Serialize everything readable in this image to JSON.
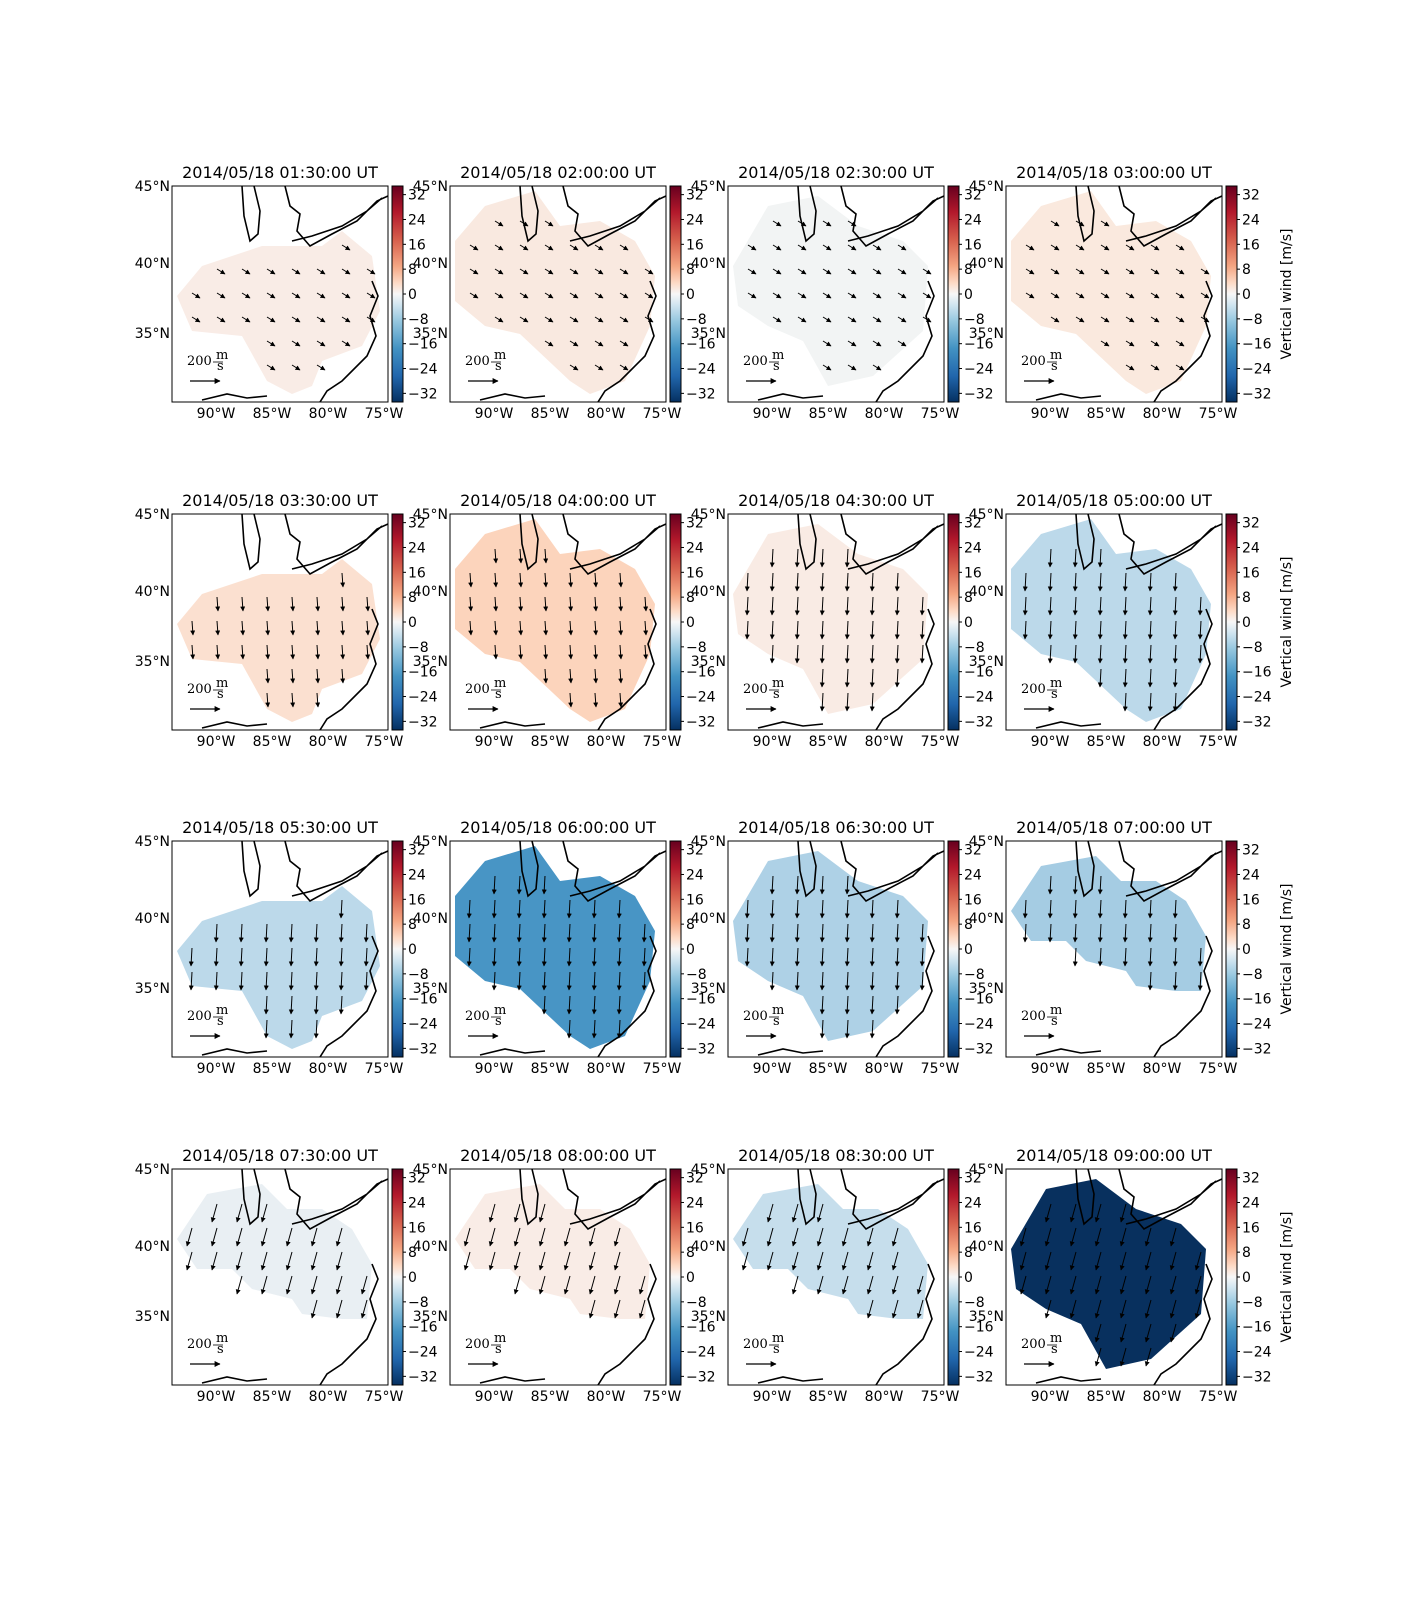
{
  "figure": {
    "colorbar_label": "Vertical wind [m/s]",
    "colorbar_ticks": [
      "32",
      "24",
      "16",
      "8",
      "0",
      "−8",
      "−16",
      "−24",
      "−32"
    ],
    "lat_labels": [
      "45°N",
      "40°N",
      "35°N"
    ],
    "lon_labels": [
      "90°W",
      "85°W",
      "80°W",
      "75°W"
    ],
    "scale_arrow_label": "200",
    "scale_unit_num": "m",
    "scale_unit_den": "s",
    "colors": {
      "strong_positive": "#67001f",
      "positive": "#f4a582",
      "neutral": "#f7f7f7",
      "negative": "#92c5de",
      "strong_negative": "#053061"
    }
  },
  "panels": [
    {
      "title": "2014/05/18 01:30:00 UT",
      "fill": "#f9ece6",
      "region": "A"
    },
    {
      "title": "2014/05/18 02:00:00 UT",
      "fill": "#f9e9e0",
      "region": "B"
    },
    {
      "title": "2014/05/18 02:30:00 UT",
      "fill": "#f2f4f4",
      "region": "C"
    },
    {
      "title": "2014/05/18 03:00:00 UT",
      "fill": "#fae9de",
      "region": "B"
    },
    {
      "title": "2014/05/18 03:30:00 UT",
      "fill": "#fbe0d0",
      "region": "A"
    },
    {
      "title": "2014/05/18 04:00:00 UT",
      "fill": "#fcd4bc",
      "region": "B"
    },
    {
      "title": "2014/05/18 04:30:00 UT",
      "fill": "#f9ebe4",
      "region": "C"
    },
    {
      "title": "2014/05/18 05:00:00 UT",
      "fill": "#bcd9ea",
      "region": "B"
    },
    {
      "title": "2014/05/18 05:30:00 UT",
      "fill": "#bcd9ea",
      "region": "A"
    },
    {
      "title": "2014/05/18 06:00:00 UT",
      "fill": "#4895c5",
      "region": "B"
    },
    {
      "title": "2014/05/18 06:30:00 UT",
      "fill": "#aed1e6",
      "region": "C"
    },
    {
      "title": "2014/05/18 07:00:00 UT",
      "fill": "#a5cce3",
      "region": "D"
    },
    {
      "title": "2014/05/18 07:30:00 UT",
      "fill": "#e9eff3",
      "region": "D"
    },
    {
      "title": "2014/05/18 08:00:00 UT",
      "fill": "#f9ece6",
      "region": "D"
    },
    {
      "title": "2014/05/18 08:30:00 UT",
      "fill": "#c6deec",
      "region": "D"
    },
    {
      "title": "2014/05/18 09:00:00 UT",
      "fill": "#08305e",
      "region": "C"
    }
  ]
}
